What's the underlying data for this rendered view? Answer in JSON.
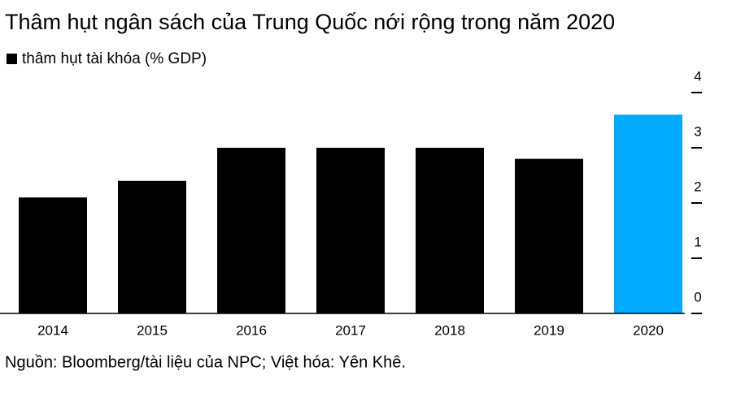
{
  "chart_data": {
    "type": "bar",
    "title": "Thâm hụt ngân sách của Trung Quốc nới rộng trong năm 2020",
    "source": "Nguồn: Bloomberg/tài liệu của NPC; Việt hóa: Yên Khê.",
    "categories": [
      "2014",
      "2015",
      "2016",
      "2017",
      "2018",
      "2019",
      "2020"
    ],
    "series": [
      {
        "name": "thâm hụt tài khóa (% GDP)",
        "color": "#000000",
        "colors": [
          "#000000",
          "#000000",
          "#000000",
          "#000000",
          "#000000",
          "#000000",
          "#00aaff"
        ],
        "values": [
          2.1,
          2.4,
          3.0,
          3.0,
          3.0,
          2.8,
          3.6
        ]
      }
    ],
    "ylim": [
      0,
      4
    ],
    "yticks": [
      0,
      1,
      2,
      3,
      4
    ],
    "grid": false
  }
}
